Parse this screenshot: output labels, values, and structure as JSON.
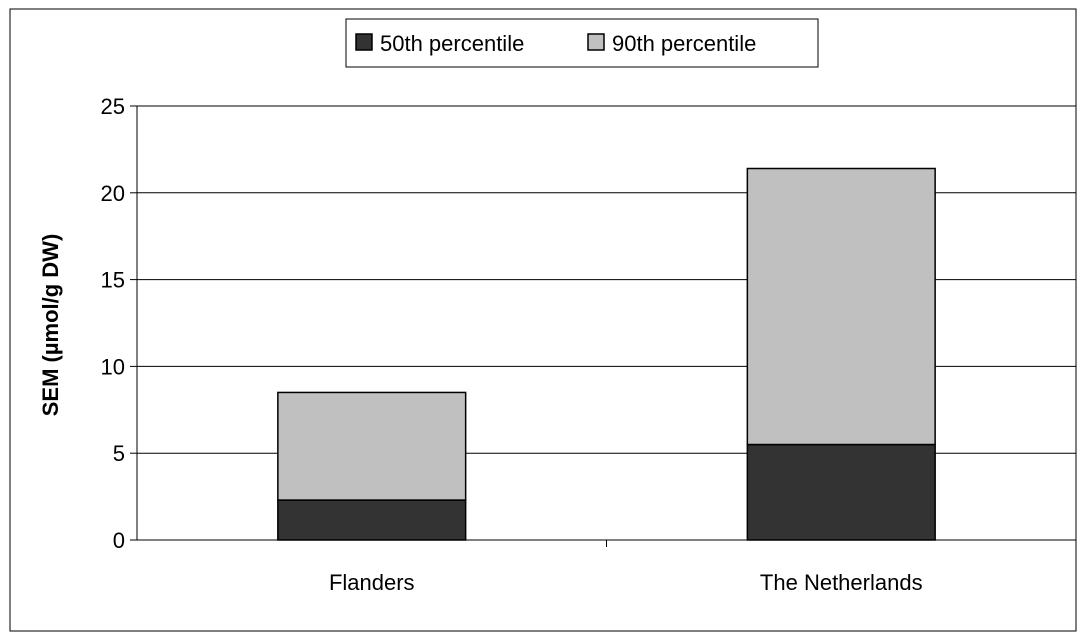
{
  "chart_data": {
    "type": "bar",
    "stacked": true,
    "categories": [
      "Flanders",
      "The Netherlands"
    ],
    "series": [
      {
        "name": "50th percentile",
        "values": [
          2.3,
          5.5
        ],
        "color": "#333333"
      },
      {
        "name": "90th percentile",
        "values": [
          6.2,
          15.9
        ],
        "color": "#c0c0c0"
      }
    ],
    "ylabel": "SEM (µmol/g DW)",
    "xlabel": "",
    "ylim": [
      0,
      25
    ],
    "yticks": [
      0,
      5,
      10,
      15,
      20,
      25
    ],
    "grid": true,
    "legend_position": "top-center"
  }
}
